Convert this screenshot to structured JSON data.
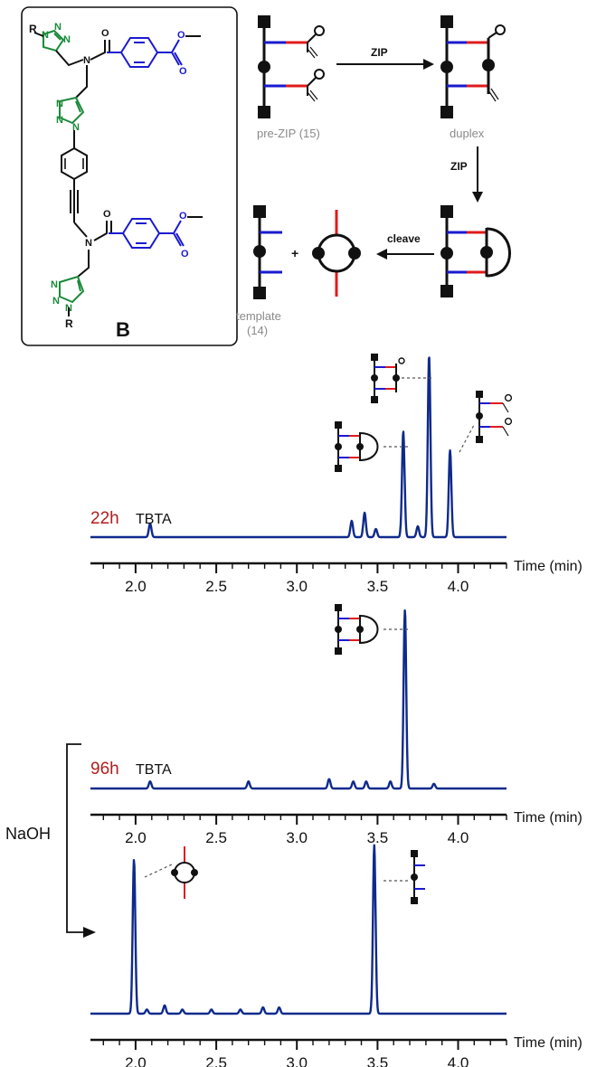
{
  "figure": {
    "panel_letter": "B",
    "r_label": "R",
    "n_label": "N",
    "o_label": "O",
    "naoh_label": "NaOH",
    "plus_label": "+",
    "scheme": {
      "pre_zip_label": "pre-ZIP (15)",
      "duplex_label": "duplex",
      "zip_label_1": "ZIP",
      "zip_label_2": "ZIP",
      "cleave_label": "cleave",
      "template_label_1": "template",
      "template_label_2": "(14)"
    },
    "colors": {
      "trace": "#0f2a8c",
      "blue_arm": "#1a1acf",
      "red_arm": "#e01b1b",
      "triazole": "#1a8a3a",
      "time_label": "#b01e1e"
    }
  },
  "chart_data": [
    {
      "type": "line",
      "time_label": "22h",
      "condition_label": "TBTA",
      "xlabel": "Time (min)",
      "xlim": [
        1.72,
        4.3
      ],
      "x_ticks": [
        "2.0",
        "2.5",
        "3.0",
        "3.5",
        "4.0"
      ],
      "peaks": [
        {
          "x": 2.09,
          "height": 0.05
        },
        {
          "x": 3.34,
          "height": 0.06
        },
        {
          "x": 3.42,
          "height": 0.09
        },
        {
          "x": 3.49,
          "height": 0.03
        },
        {
          "x": 3.66,
          "height": 0.39,
          "annotation": "cyclic duplex"
        },
        {
          "x": 3.75,
          "height": 0.04
        },
        {
          "x": 3.82,
          "height": 0.67,
          "annotation": "duplex"
        },
        {
          "x": 3.95,
          "height": 0.32,
          "annotation": "pre-ZIP"
        }
      ]
    },
    {
      "type": "line",
      "time_label": "96h",
      "condition_label": "TBTA",
      "xlabel": "Time (min)",
      "xlim": [
        1.72,
        4.3
      ],
      "x_ticks": [
        "2.0",
        "2.5",
        "3.0",
        "3.5",
        "4.0"
      ],
      "peaks": [
        {
          "x": 2.09,
          "height": 0.03
        },
        {
          "x": 2.7,
          "height": 0.03
        },
        {
          "x": 3.2,
          "height": 0.04
        },
        {
          "x": 3.35,
          "height": 0.03
        },
        {
          "x": 3.43,
          "height": 0.03
        },
        {
          "x": 3.58,
          "height": 0.03
        },
        {
          "x": 3.67,
          "height": 0.76,
          "annotation": "cyclic duplex"
        },
        {
          "x": 3.85,
          "height": 0.02
        }
      ]
    },
    {
      "type": "line",
      "time_label": "",
      "condition_label": "",
      "xlabel": "Time (min)",
      "xlim": [
        1.72,
        4.3
      ],
      "x_ticks": [
        "2.0",
        "2.5",
        "3.0",
        "3.5",
        "4.0"
      ],
      "peaks": [
        {
          "x": 1.99,
          "height": 0.74,
          "annotation": "macrocycle"
        },
        {
          "x": 2.07,
          "height": 0.02
        },
        {
          "x": 2.18,
          "height": 0.04
        },
        {
          "x": 2.29,
          "height": 0.02
        },
        {
          "x": 2.47,
          "height": 0.02
        },
        {
          "x": 2.65,
          "height": 0.02
        },
        {
          "x": 2.79,
          "height": 0.03
        },
        {
          "x": 2.89,
          "height": 0.03
        },
        {
          "x": 3.48,
          "height": 0.81,
          "annotation": "template"
        }
      ]
    }
  ]
}
